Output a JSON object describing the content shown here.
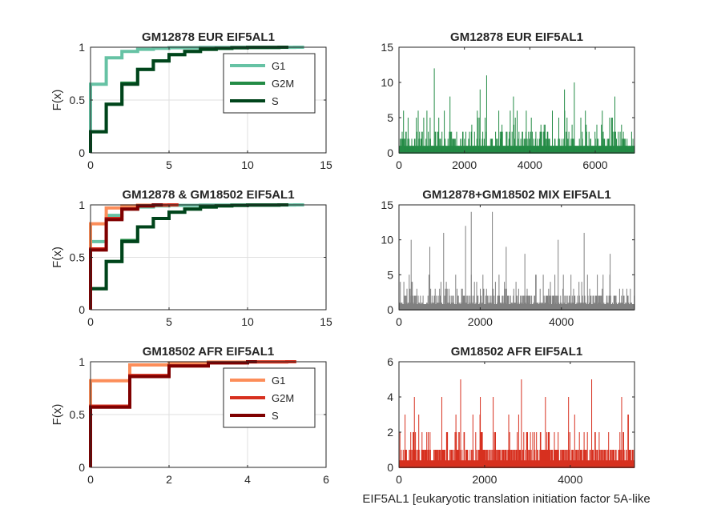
{
  "figure": {
    "xlabel": "EIF5AL1 [eukaryotic translation initiation factor 5A-like"
  },
  "chart_data": [
    {
      "type": "line",
      "subtype": "ecdf",
      "title": "GM12878 EUR EIF5AL1",
      "ylabel": "F(x)",
      "xlim": [
        0,
        15
      ],
      "ylim": [
        0,
        1
      ],
      "xticks": [
        0,
        5,
        10,
        15
      ],
      "yticks": [
        0,
        0.5,
        1
      ],
      "grid": true,
      "legend": {
        "position": "top-right",
        "entries": [
          "G1",
          "G2M",
          "S"
        ]
      },
      "series": [
        {
          "name": "G1",
          "color": "#66c2a4",
          "x": [
            0,
            1,
            2,
            3,
            4,
            5,
            7,
            9,
            13
          ],
          "y": [
            0.65,
            0.9,
            0.96,
            0.98,
            0.99,
            0.995,
            0.998,
            0.999,
            1.0
          ]
        },
        {
          "name": "G2M",
          "color": "#238b45",
          "x": [
            0,
            1,
            2,
            3,
            4,
            5,
            6,
            7,
            8,
            9,
            10,
            12
          ],
          "y": [
            0.2,
            0.46,
            0.66,
            0.79,
            0.87,
            0.93,
            0.96,
            0.98,
            0.99,
            0.995,
            0.998,
            1.0
          ]
        },
        {
          "name": "S",
          "color": "#00441b",
          "x": [
            0,
            1,
            2,
            3,
            4,
            5,
            6,
            7,
            8,
            9,
            10,
            12
          ],
          "y": [
            0.2,
            0.46,
            0.65,
            0.79,
            0.87,
            0.93,
            0.96,
            0.98,
            0.99,
            0.995,
            0.998,
            1.0
          ]
        }
      ]
    },
    {
      "type": "bar",
      "title": "GM12878 EUR EIF5AL1",
      "color": "#238b45",
      "n_cells": 7200,
      "xlim": [
        0,
        7200
      ],
      "ylim": [
        0,
        15
      ],
      "xticks": [
        0,
        2000,
        4000,
        6000
      ],
      "yticks": [
        0,
        5,
        10,
        15
      ],
      "value_range": [
        0,
        12
      ],
      "typical_max": 5,
      "peaks": [
        {
          "x": 1080,
          "y": 12
        },
        {
          "x": 2680,
          "y": 11
        },
        {
          "x": 5360,
          "y": 10
        },
        {
          "x": 2480,
          "y": 9
        },
        {
          "x": 5060,
          "y": 9
        },
        {
          "x": 1560,
          "y": 8
        },
        {
          "x": 3500,
          "y": 8
        },
        {
          "x": 6600,
          "y": 8
        }
      ]
    },
    {
      "type": "line",
      "subtype": "ecdf",
      "title": "GM12878 & GM18502 EIF5AL1",
      "ylabel": "F(x)",
      "xlim": [
        0,
        15
      ],
      "ylim": [
        0,
        1
      ],
      "xticks": [
        0,
        5,
        10,
        15
      ],
      "yticks": [
        0,
        0.5,
        1
      ],
      "grid": true,
      "series": [
        {
          "name": "G1",
          "color": "#66c2a4",
          "x": [
            0,
            1,
            2,
            3,
            4,
            5,
            7,
            9,
            13
          ],
          "y": [
            0.65,
            0.9,
            0.96,
            0.98,
            0.99,
            0.995,
            0.998,
            0.999,
            1.0
          ]
        },
        {
          "name": "G2M",
          "color": "#238b45",
          "x": [
            0,
            1,
            2,
            3,
            4,
            5,
            6,
            7,
            8,
            9,
            10,
            12
          ],
          "y": [
            0.2,
            0.46,
            0.66,
            0.79,
            0.87,
            0.93,
            0.96,
            0.98,
            0.99,
            0.995,
            0.998,
            1.0
          ]
        },
        {
          "name": "S",
          "color": "#00441b",
          "x": [
            0,
            1,
            2,
            3,
            4,
            5,
            6,
            7,
            8,
            9,
            10,
            12
          ],
          "y": [
            0.2,
            0.46,
            0.65,
            0.79,
            0.87,
            0.93,
            0.96,
            0.98,
            0.99,
            0.995,
            0.998,
            1.0
          ]
        },
        {
          "name": "G1",
          "color": "#fc8d59",
          "x": [
            0,
            1,
            2,
            3,
            4,
            5
          ],
          "y": [
            0.82,
            0.97,
            0.99,
            0.997,
            0.999,
            1.0
          ]
        },
        {
          "name": "G2M",
          "color": "#d7301f",
          "x": [
            0,
            1,
            2,
            3,
            4,
            5
          ],
          "y": [
            0.58,
            0.87,
            0.96,
            0.99,
            0.998,
            1.0
          ]
        },
        {
          "name": "S",
          "color": "#7f0000",
          "x": [
            0,
            1,
            2,
            3,
            4
          ],
          "y": [
            0.57,
            0.86,
            0.96,
            0.99,
            1.0
          ]
        }
      ]
    },
    {
      "type": "bar",
      "title": "GM12878+GM18502 MIX EIF5AL1",
      "color": "#808080",
      "n_cells": 5800,
      "xlim": [
        0,
        5800
      ],
      "ylim": [
        0,
        15
      ],
      "xticks": [
        0,
        2000,
        4000
      ],
      "yticks": [
        0,
        5,
        10,
        15
      ],
      "value_range": [
        0,
        14
      ],
      "typical_max": 4,
      "peaks": [
        {
          "x": 1780,
          "y": 14
        },
        {
          "x": 2300,
          "y": 14
        },
        {
          "x": 1640,
          "y": 12
        },
        {
          "x": 1100,
          "y": 11
        },
        {
          "x": 4560,
          "y": 11
        },
        {
          "x": 3920,
          "y": 10
        },
        {
          "x": 300,
          "y": 10
        },
        {
          "x": 760,
          "y": 9
        },
        {
          "x": 2640,
          "y": 9
        },
        {
          "x": 3100,
          "y": 8
        },
        {
          "x": 5200,
          "y": 8
        }
      ]
    },
    {
      "type": "line",
      "subtype": "ecdf",
      "title": "GM18502 AFR EIF5AL1",
      "ylabel": "F(x)",
      "xlim": [
        0,
        6
      ],
      "ylim": [
        0,
        1
      ],
      "xticks": [
        0,
        2,
        4,
        6
      ],
      "yticks": [
        0,
        0.5,
        1
      ],
      "grid": true,
      "legend": {
        "position": "top-right",
        "entries": [
          "G1",
          "G2M",
          "S"
        ]
      },
      "series": [
        {
          "name": "G1",
          "color": "#fc8d59",
          "x": [
            0,
            1,
            2,
            3,
            4,
            5
          ],
          "y": [
            0.82,
            0.97,
            0.99,
            0.997,
            0.999,
            1.0
          ]
        },
        {
          "name": "G2M",
          "color": "#d7301f",
          "x": [
            0,
            1,
            2,
            3,
            4,
            5
          ],
          "y": [
            0.58,
            0.87,
            0.96,
            0.99,
            0.998,
            1.0
          ]
        },
        {
          "name": "S",
          "color": "#7f0000",
          "x": [
            0,
            1,
            2,
            3,
            4
          ],
          "y": [
            0.57,
            0.86,
            0.96,
            0.99,
            1.0
          ]
        }
      ]
    },
    {
      "type": "bar",
      "title": "GM18502 AFR EIF5AL1",
      "color": "#d7301f",
      "n_cells": 5500,
      "xlim": [
        0,
        5500
      ],
      "ylim": [
        0,
        6
      ],
      "xticks": [
        0,
        2000,
        4000
      ],
      "yticks": [
        0,
        2,
        4,
        6
      ],
      "value_range": [
        0,
        5
      ],
      "typical_max": 2,
      "peaks": [
        {
          "x": 1440,
          "y": 5
        },
        {
          "x": 2860,
          "y": 5
        },
        {
          "x": 4500,
          "y": 5
        },
        {
          "x": 360,
          "y": 4
        },
        {
          "x": 1000,
          "y": 4
        },
        {
          "x": 1900,
          "y": 4
        },
        {
          "x": 2200,
          "y": 4
        },
        {
          "x": 3420,
          "y": 4
        },
        {
          "x": 3960,
          "y": 4
        },
        {
          "x": 5200,
          "y": 4
        }
      ]
    }
  ]
}
